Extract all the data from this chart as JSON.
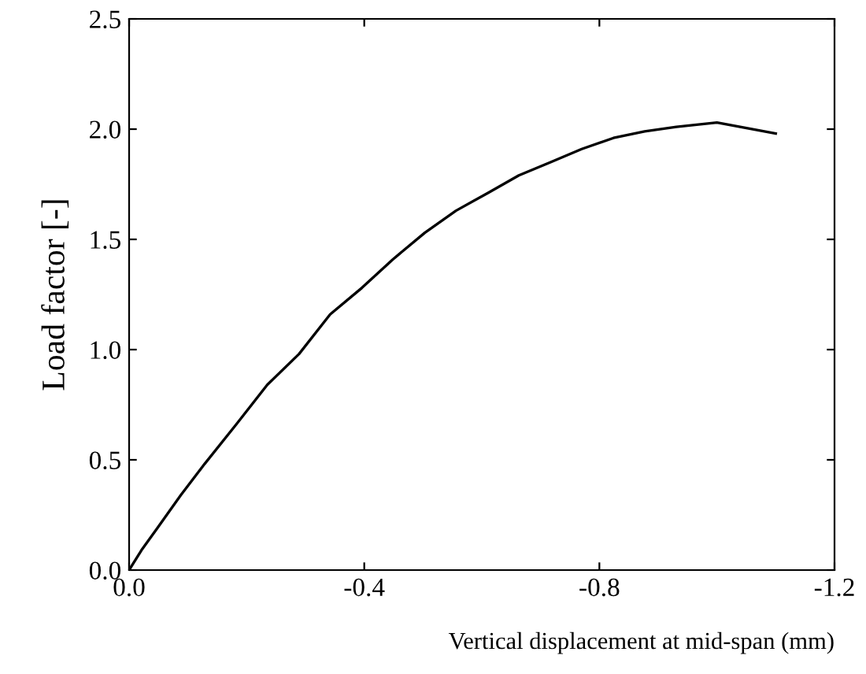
{
  "chart_data": {
    "type": "line",
    "xlabel": "Vertical displacement at mid-span (mm)",
    "ylabel": "Load factor [-]",
    "x": [
      0,
      -0.021,
      -0.048,
      -0.088,
      -0.128,
      -0.182,
      -0.235,
      -0.289,
      -0.342,
      -0.396,
      -0.449,
      -0.503,
      -0.556,
      -0.61,
      -0.663,
      -0.717,
      -0.77,
      -0.824,
      -0.877,
      -0.931,
      -1.0,
      -1.1
    ],
    "series": [
      {
        "color": "#000000",
        "values": [
          0,
          0.09,
          0.19,
          0.34,
          0.48,
          0.66,
          0.84,
          0.98,
          1.16,
          1.28,
          1.41,
          1.53,
          1.63,
          1.71,
          1.79,
          1.85,
          1.91,
          1.96,
          1.99,
          2.01,
          2.03,
          1.98
        ]
      }
    ],
    "xlim": [
      0,
      -1.2
    ],
    "xticks": [
      {
        "value": 0,
        "label": "0.0"
      },
      -0.4,
      -0.8,
      -1.2
    ],
    "ylim": [
      0,
      2.5
    ],
    "yticks": [
      {
        "value": 0,
        "label": "0.0"
      },
      0.5,
      {
        "value": 1,
        "label": "1.0"
      },
      1.5,
      {
        "value": 2,
        "label": "2.0"
      },
      2.5
    ],
    "grid": false,
    "legend": false,
    "line_style": "solid",
    "marker": "none"
  }
}
